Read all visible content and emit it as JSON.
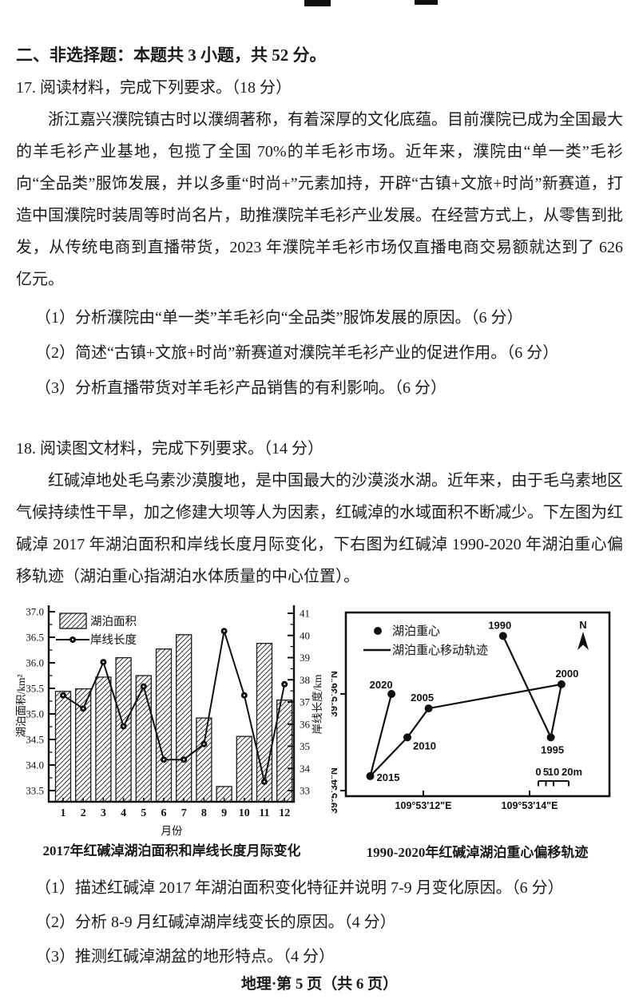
{
  "section": {
    "heading": "二、非选择题：本题共 3 小题，共 52 分。"
  },
  "q17": {
    "title": "17. 阅读材料，完成下列要求。（18 分）",
    "paragraph": "浙江嘉兴濮院镇古时以濮绸著称，有着深厚的文化底蕴。目前濮院已成为全国最大的羊毛衫产业基地，包揽了全国 70%的羊毛衫市场。近年来，濮院由“单一类”毛衫向“全品类”服饰发展，并以多重“时尚+”元素加持，开辟“古镇+文旅+时尚”新赛道，打造中国濮院时装周等时尚名片，助推濮院羊毛衫产业发展。在经营方式上，从零售到批发，从传统电商到直播带货，2023 年濮院羊毛衫市场仅直播电商交易额就达到了 626 亿元。",
    "subquestions": [
      "（1）分析濮院由“单一类”羊毛衫向“全品类”服饰发展的原因。（6 分）",
      "（2）简述“古镇+文旅+时尚”新赛道对濮院羊毛衫产业的促进作用。（6 分）",
      "（3）分析直播带货对羊毛衫产品销售的有利影响。（6 分）"
    ]
  },
  "q18": {
    "title": "18. 阅读图文材料，完成下列要求。（14 分）",
    "paragraph": "红碱淖地处毛乌素沙漠腹地，是中国最大的沙漠淡水湖。近年来，由于毛乌素地区气候持续性干旱，加之修建大坝等人为因素，红碱淖的水域面积不断减少。下左图为红碱淖 2017 年湖泊面积和岸线长度月际变化，下右图为红碱淖 1990-2020 年湖泊重心偏移轨迹（湖泊重心指湖泊水体质量的中心位置）。",
    "subquestions": [
      "（1）描述红碱淖 2017 年湖泊面积变化特征并说明 7-9 月变化原因。（6 分）",
      "（2）分析 8-9 月红碱淖湖岸线变长的原因。（4 分）",
      "（3）推测红碱淖湖盆的地形特点。（4 分）"
    ]
  },
  "chart_data": [
    {
      "type": "bar+line",
      "title": "2017年红碱淖湖泊面积和岸线长度月际变化",
      "categories": [
        1,
        2,
        3,
        4,
        5,
        6,
        7,
        8,
        9,
        10,
        11,
        12
      ],
      "xlabel": "月份",
      "ylabel_left": "湖泊面积/km²",
      "ylabel_right": "岸线长度/km",
      "ylim_left": [
        33.5,
        37.0
      ],
      "ylim_right": [
        33,
        41
      ],
      "legend_position": "top-left-inside",
      "series": [
        {
          "name": "湖泊面积",
          "type": "bar",
          "axis": "left",
          "values": [
            35.44,
            35.49,
            35.72,
            36.1,
            35.75,
            36.27,
            36.55,
            34.92,
            33.58,
            34.56,
            36.38,
            35.27
          ]
        },
        {
          "name": "岸线长度",
          "type": "line",
          "axis": "right",
          "values": [
            37.3,
            36.7,
            38.8,
            35.9,
            37.7,
            34.4,
            34.4,
            35.1,
            40.2,
            37.3,
            33.4,
            37.8
          ]
        }
      ]
    },
    {
      "type": "scatter",
      "title": "1990-2020年红碱淖湖泊重心偏移轨迹",
      "legend": [
        "湖泊重心",
        "湖泊重心移动轨迹"
      ],
      "north_label": "N",
      "x_axis": {
        "ticks": [
          {
            "label": "109°53'12\"E",
            "sec": 12
          },
          {
            "label": "109°53'14\"E",
            "sec": 14
          }
        ]
      },
      "y_axis": {
        "ticks": [
          {
            "label": "39°5'34\"N",
            "sec": 34
          },
          {
            "label": "39°5'36\"N",
            "sec": 36
          }
        ]
      },
      "scale_bar": {
        "labels": [
          "0",
          "5",
          "10",
          "20m"
        ],
        "values": [
          0,
          5,
          10,
          20
        ]
      },
      "points": [
        {
          "year": "1990",
          "lon_sec": 13.5,
          "lat_sec": 37.2
        },
        {
          "year": "1995",
          "lon_sec": 14.4,
          "lat_sec": 35.1
        },
        {
          "year": "2000",
          "lon_sec": 14.6,
          "lat_sec": 36.2
        },
        {
          "year": "2005",
          "lon_sec": 12.1,
          "lat_sec": 35.7
        },
        {
          "year": "2010",
          "lon_sec": 11.7,
          "lat_sec": 35.1
        },
        {
          "year": "2015",
          "lon_sec": 11.0,
          "lat_sec": 34.3
        },
        {
          "year": "2020",
          "lon_sec": 11.4,
          "lat_sec": 36.0
        }
      ]
    }
  ],
  "footer": {
    "text": "地理·第 5 页（共 6 页）"
  }
}
